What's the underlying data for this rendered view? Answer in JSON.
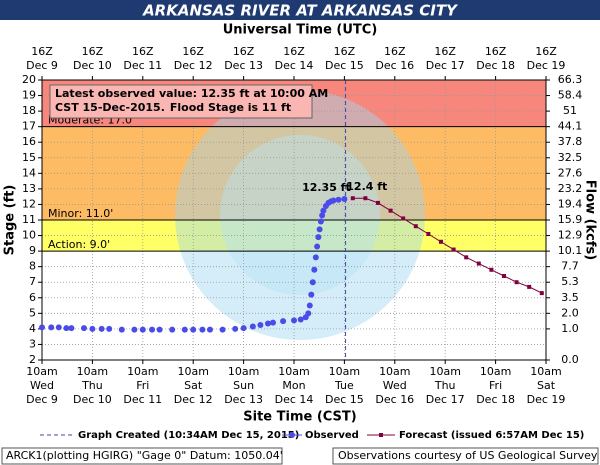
{
  "chart_data": {
    "type": "hydrograph",
    "title": "ARKANSAS RIVER AT ARKANSAS CITY",
    "x2label": "Universal Time (UTC)",
    "xlabel": "Site Time (CST)",
    "ylabel": "Stage (ft)",
    "y2label": "Flow (kcfs)",
    "xlim": [
      9.4167,
      19.4167
    ],
    "ylim": [
      2,
      20
    ],
    "yticks": [
      2,
      3,
      4,
      5,
      6,
      7,
      8,
      9,
      10,
      11,
      12,
      13,
      14,
      15,
      16,
      17,
      18,
      19,
      20
    ],
    "y2ticks": [
      66.3,
      58.4,
      51.0,
      44.1,
      37.8,
      32.5,
      27.6,
      23.2,
      19.4,
      15.9,
      12.9,
      10.1,
      7.7,
      5.3,
      3.5,
      {
        "value": 2,
        "label": "2.0"
      },
      {
        "value": 1,
        "label": "1.0"
      },
      {
        "value": 0,
        "label": "0.0"
      }
    ],
    "y2tick_stages": [
      20,
      19,
      18,
      17,
      16,
      15,
      14,
      13,
      12,
      11,
      10,
      9,
      8,
      7,
      6,
      5,
      4,
      2
    ],
    "xticks": [
      {
        "value": 9.4167,
        "label": [
          "10am",
          "Wed",
          "Dec 9"
        ]
      },
      {
        "value": 10.4167,
        "label": [
          "10am",
          "Thu",
          "Dec 10"
        ]
      },
      {
        "value": 11.4167,
        "label": [
          "10am",
          "Fri",
          "Dec 11"
        ]
      },
      {
        "value": 12.4167,
        "label": [
          "10am",
          "Sat",
          "Dec 12"
        ]
      },
      {
        "value": 13.4167,
        "label": [
          "10am",
          "Sun",
          "Dec 13"
        ]
      },
      {
        "value": 14.4167,
        "label": [
          "10am",
          "Mon",
          "Dec 14"
        ]
      },
      {
        "value": 15.4167,
        "label": [
          "10am",
          "Tue",
          "Dec 15"
        ]
      },
      {
        "value": 16.4167,
        "label": [
          "10am",
          "Wed",
          "Dec 16"
        ]
      },
      {
        "value": 17.4167,
        "label": [
          "10am",
          "Thu",
          "Dec 17"
        ]
      },
      {
        "value": 18.4167,
        "label": [
          "10am",
          "Fri",
          "Dec 18"
        ]
      },
      {
        "value": 19.4167,
        "label": [
          "10am",
          "Sat",
          "Dec 19"
        ]
      }
    ],
    "x2ticks": [
      {
        "value": 9.4167,
        "label": [
          "16Z",
          "Dec 9"
        ]
      },
      {
        "value": 10.4167,
        "label": [
          "16Z",
          "Dec 10"
        ]
      },
      {
        "value": 11.4167,
        "label": [
          "16Z",
          "Dec 11"
        ]
      },
      {
        "value": 12.4167,
        "label": [
          "16Z",
          "Dec 12"
        ]
      },
      {
        "value": 13.4167,
        "label": [
          "16Z",
          "Dec 13"
        ]
      },
      {
        "value": 14.4167,
        "label": [
          "16Z",
          "Dec 14"
        ]
      },
      {
        "value": 15.4167,
        "label": [
          "16Z",
          "Dec 15"
        ]
      },
      {
        "value": 16.4167,
        "label": [
          "16Z",
          "Dec 16"
        ]
      },
      {
        "value": 17.4167,
        "label": [
          "16Z",
          "Dec 17"
        ]
      },
      {
        "value": 18.4167,
        "label": [
          "16Z",
          "Dec 18"
        ]
      },
      {
        "value": 19.4167,
        "label": [
          "16Z",
          "Dec 19"
        ]
      }
    ],
    "grid": true,
    "bands": [
      {
        "from": 17,
        "to": 20,
        "color": "#f7877d"
      },
      {
        "from": 11,
        "to": 17,
        "color": "#fdbb64"
      },
      {
        "from": 9,
        "to": 11,
        "color": "#ffff66"
      }
    ],
    "flood_levels": [
      {
        "name": "Moderate: 17.0'",
        "value": 17
      },
      {
        "name": "Minor: 11.0'",
        "value": 11
      },
      {
        "name": "Action: 9.0'",
        "value": 9
      }
    ],
    "graph_created": {
      "name": "Graph Created (10:34AM Dec 15, 2015)",
      "x": 15.44
    },
    "series": [
      {
        "name": "Observed",
        "color": "#4b4bea",
        "label": "12.35 ft",
        "x": [
          9.4167,
          9.6,
          9.75,
          9.9,
          10.0,
          10.25,
          10.4167,
          10.6,
          10.75,
          11.0,
          11.25,
          11.4167,
          11.6,
          11.75,
          12.0,
          12.25,
          12.4167,
          12.6,
          12.75,
          13.0,
          13.25,
          13.4167,
          13.6,
          13.75,
          13.9,
          14.0,
          14.2,
          14.4167,
          14.55,
          14.65,
          14.7,
          14.73,
          14.76,
          14.79,
          14.82,
          14.85,
          14.875,
          14.9,
          14.925,
          14.95,
          14.975,
          15.0,
          15.05,
          15.1,
          15.15,
          15.2,
          15.3,
          15.4167
        ],
        "values": [
          4.1,
          4.1,
          4.1,
          4.05,
          4.05,
          4.05,
          4.0,
          4.0,
          4.0,
          3.95,
          3.95,
          3.95,
          3.95,
          3.95,
          3.95,
          3.95,
          3.95,
          3.95,
          3.95,
          3.95,
          4.0,
          4.05,
          4.15,
          4.25,
          4.35,
          4.4,
          4.5,
          4.55,
          4.6,
          4.75,
          5.0,
          5.5,
          6.2,
          7.0,
          7.8,
          8.6,
          9.3,
          9.9,
          10.4,
          10.9,
          11.3,
          11.6,
          11.9,
          12.1,
          12.2,
          12.25,
          12.3,
          12.35
        ]
      },
      {
        "name": "Forecast (issued 6:57AM Dec 15)",
        "color": "#800040",
        "label": "12.4 ft",
        "x": [
          15.5833,
          15.8333,
          16.0833,
          16.3333,
          16.5833,
          16.8333,
          17.0833,
          17.3333,
          17.5833,
          17.8333,
          18.0833,
          18.3333,
          18.5833,
          18.8333,
          19.0833,
          19.3333
        ],
        "values": [
          12.4,
          12.4,
          12.1,
          11.6,
          11.1,
          10.6,
          10.1,
          9.6,
          9.1,
          8.6,
          8.2,
          7.8,
          7.4,
          7.0,
          6.7,
          6.3
        ]
      }
    ],
    "info_box": {
      "line1": "Latest observed value: 12.35 ft at 10:00 AM",
      "line2": "CST 15-Dec-2015.",
      "line3": "Flood Stage is 11 ft"
    },
    "footer_left": "ARCK1(plotting HGIRG) \"Gage 0\" Datum: 1050.04'",
    "footer_right": "Observations courtesy of US Geological Survey"
  }
}
